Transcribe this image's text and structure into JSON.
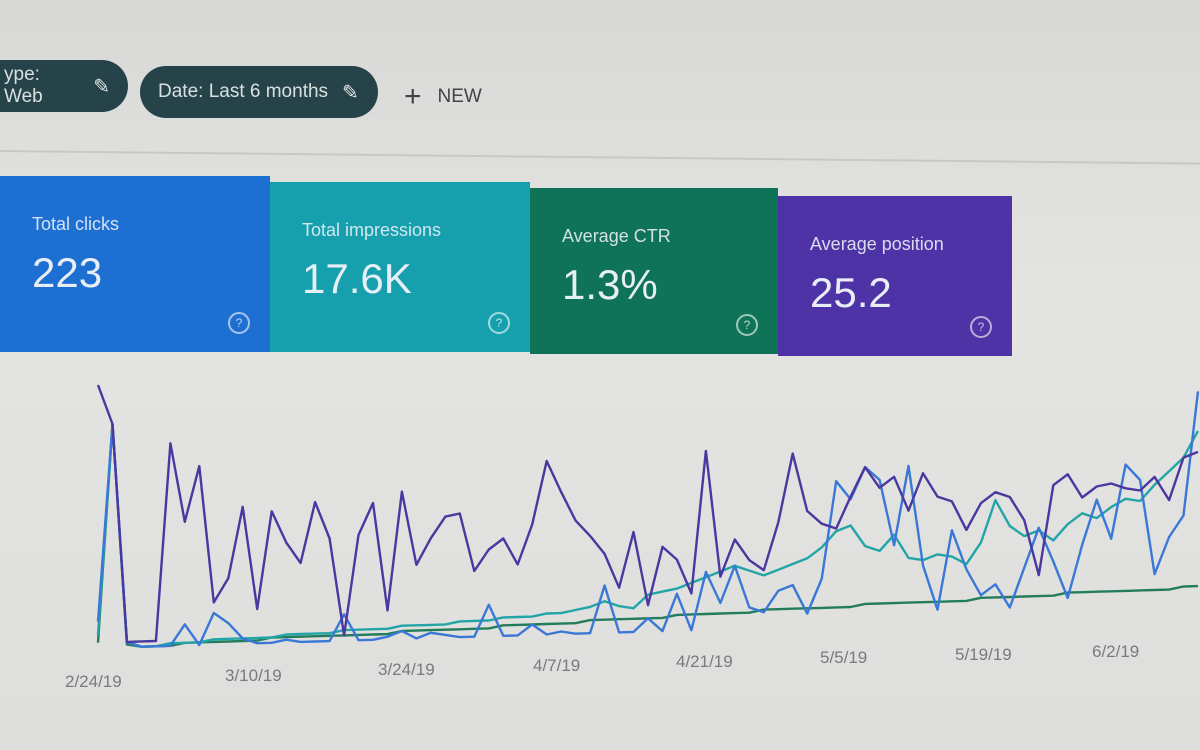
{
  "filters": {
    "type_chip": "ype: Web",
    "date_chip": "Date: Last 6 months",
    "new_label": "NEW"
  },
  "cards": [
    {
      "label": "Total clicks",
      "value": "223",
      "color": "#1e6fd2"
    },
    {
      "label": "Total impressions",
      "value": "17.6K",
      "color": "#16a0ad"
    },
    {
      "label": "Average CTR",
      "value": "1.3%",
      "color": "#0f7357"
    },
    {
      "label": "Average position",
      "value": "25.2",
      "color": "#4e33a6"
    }
  ],
  "chart_data": {
    "type": "line",
    "title": "",
    "xlabel": "",
    "ylabel": "",
    "x_tick_labels": [
      "2/24/19",
      "3/10/19",
      "3/24/19",
      "4/7/19",
      "4/21/19",
      "5/5/19",
      "5/19/19",
      "6/2/19"
    ],
    "grid": false,
    "legend": "none",
    "note_values": "relative levels (no y-axis printed)",
    "series": [
      {
        "key": "position",
        "color": "#4a37a0",
        "values": [
          100,
          85,
          2,
          2,
          2,
          77,
          47,
          68,
          16,
          25,
          52,
          13,
          50,
          38,
          30,
          53,
          39,
          2,
          40,
          52,
          11,
          56,
          28,
          38,
          46,
          47,
          25,
          33,
          37,
          27,
          42,
          66,
          54,
          43,
          37,
          30,
          17,
          38,
          10,
          32,
          27,
          14,
          68,
          20,
          34,
          26,
          22,
          40,
          66,
          44,
          39,
          37,
          49,
          60,
          52,
          56,
          43,
          57,
          48,
          46,
          35,
          45,
          49,
          47,
          38,
          17,
          51,
          55,
          46,
          50,
          51,
          49,
          48,
          53,
          44,
          60,
          62
        ]
      },
      {
        "key": "clicks",
        "color": "#3a78d8",
        "values": [
          10,
          85,
          2,
          0,
          0,
          0,
          8,
          0,
          12,
          8,
          2,
          0,
          0,
          1,
          0,
          0,
          0,
          10,
          0,
          0,
          1,
          3,
          0,
          2,
          1,
          0,
          0,
          12,
          0,
          0,
          4,
          0,
          1,
          0,
          0,
          18,
          0,
          0,
          5,
          0,
          14,
          0,
          22,
          10,
          24,
          8,
          6,
          14,
          16,
          5,
          18,
          55,
          48,
          60,
          55,
          30,
          60,
          22,
          5,
          35,
          20,
          10,
          14,
          5,
          20,
          35,
          22,
          8,
          28,
          45,
          30,
          58,
          52,
          16,
          30,
          38,
          85
        ]
      },
      {
        "key": "impressions",
        "color": "#23a5a8",
        "values": [
          5,
          85,
          2,
          0,
          0,
          1,
          1,
          1,
          2,
          2,
          2,
          2,
          2,
          3,
          3,
          3,
          3,
          4,
          4,
          4,
          4,
          5,
          5,
          5,
          5,
          6,
          6,
          6,
          7,
          7,
          7,
          8,
          8,
          9,
          10,
          12,
          10,
          9,
          14,
          15,
          16,
          18,
          20,
          22,
          24,
          22,
          20,
          22,
          24,
          26,
          30,
          36,
          38,
          30,
          28,
          34,
          25,
          24,
          26,
          25,
          22,
          30,
          46,
          36,
          32,
          34,
          30,
          36,
          40,
          38,
          42,
          45,
          44,
          50,
          55,
          60,
          70
        ]
      },
      {
        "key": "ctr",
        "color": "#237d5c",
        "values": [
          2,
          85,
          1,
          0,
          0,
          0,
          1,
          1,
          1,
          1,
          1,
          1,
          2,
          2,
          2,
          2,
          2,
          2,
          2,
          2,
          2,
          3,
          3,
          3,
          3,
          3,
          3,
          3,
          4,
          4,
          4,
          4,
          4,
          4,
          5,
          5,
          5,
          5,
          5,
          5,
          6,
          6,
          6,
          6,
          6,
          6,
          7,
          7,
          7,
          7,
          7,
          7,
          7,
          8,
          8,
          8,
          8,
          8,
          8,
          8,
          8,
          9,
          9,
          9,
          9,
          9,
          9,
          10,
          10,
          10,
          10,
          10,
          10,
          10,
          10,
          11,
          11
        ]
      }
    ]
  }
}
